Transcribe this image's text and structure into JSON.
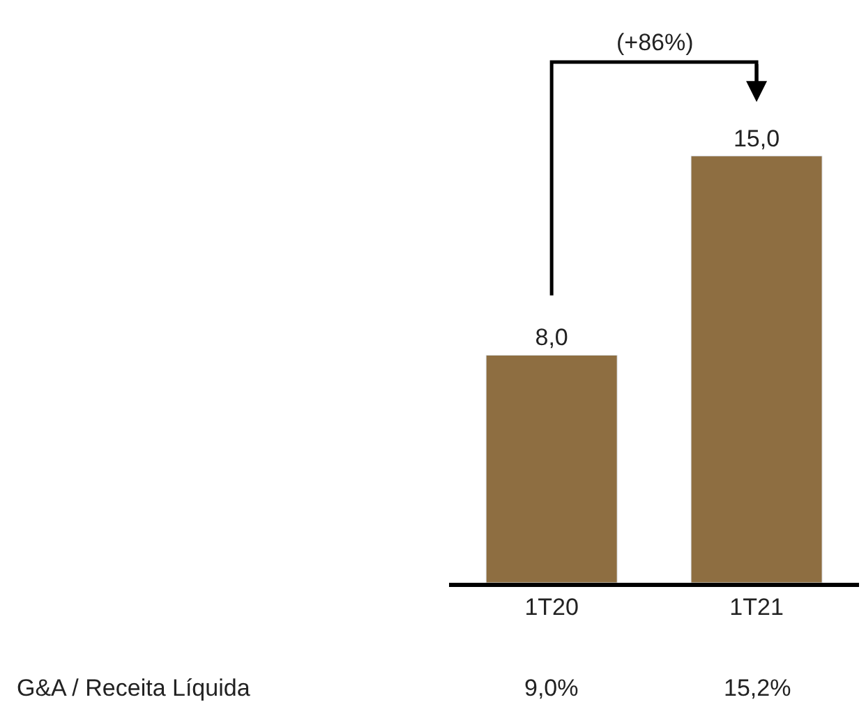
{
  "chart_data": {
    "type": "bar",
    "categories": [
      "1T20",
      "1T21"
    ],
    "values": [
      8.0,
      15.0
    ],
    "value_labels": [
      "8,0",
      "15,0"
    ],
    "color": "#8e6e41",
    "annotations": [
      "(+86%)",
      "G&A / Receita Líquida",
      "9,0%",
      "15,2%"
    ]
  }
}
